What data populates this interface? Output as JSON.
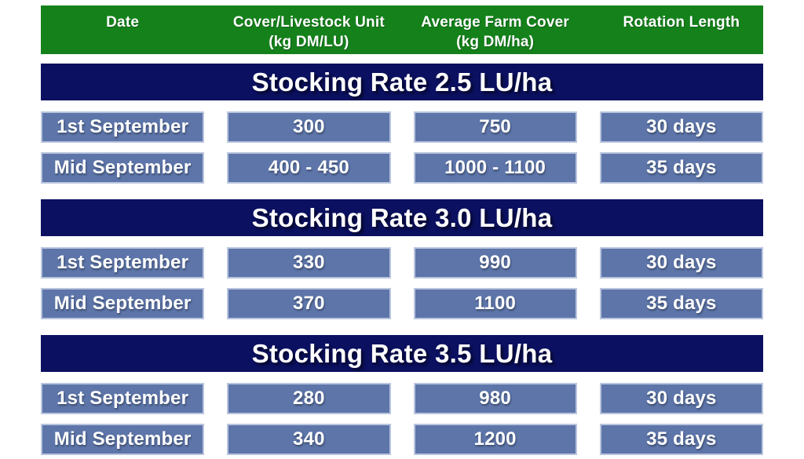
{
  "colors": {
    "header_green": "#15811b",
    "section_navy": "#0b1060",
    "cell_blue": "#5d75a9",
    "cell_border_light": "#b9c5de",
    "text": "#ffffff",
    "page_background": "#ffffff"
  },
  "chart_data": {
    "type": "table",
    "columns": [
      {
        "line1": "Date",
        "line2": ""
      },
      {
        "line1": "Cover/Livestock Unit",
        "line2": "(kg DM/LU)"
      },
      {
        "line1": "Average Farm Cover",
        "line2": "(kg DM/ha)"
      },
      {
        "line1": "Rotation Length",
        "line2": ""
      }
    ],
    "sections": [
      {
        "title": "Stocking Rate 2.5 LU/ha",
        "rows": [
          [
            "1st September",
            "300",
            "750",
            "30 days"
          ],
          [
            "Mid September",
            "400 - 450",
            "1000 - 1100",
            "35 days"
          ]
        ]
      },
      {
        "title": "Stocking Rate 3.0 LU/ha",
        "rows": [
          [
            "1st September",
            "330",
            "990",
            "30 days"
          ],
          [
            "Mid September",
            "370",
            "1100",
            "35 days"
          ]
        ]
      },
      {
        "title": "Stocking Rate 3.5 LU/ha",
        "rows": [
          [
            "1st September",
            "280",
            "980",
            "30 days"
          ],
          [
            "Mid September",
            "340",
            "1200",
            "35 days"
          ]
        ]
      }
    ]
  }
}
